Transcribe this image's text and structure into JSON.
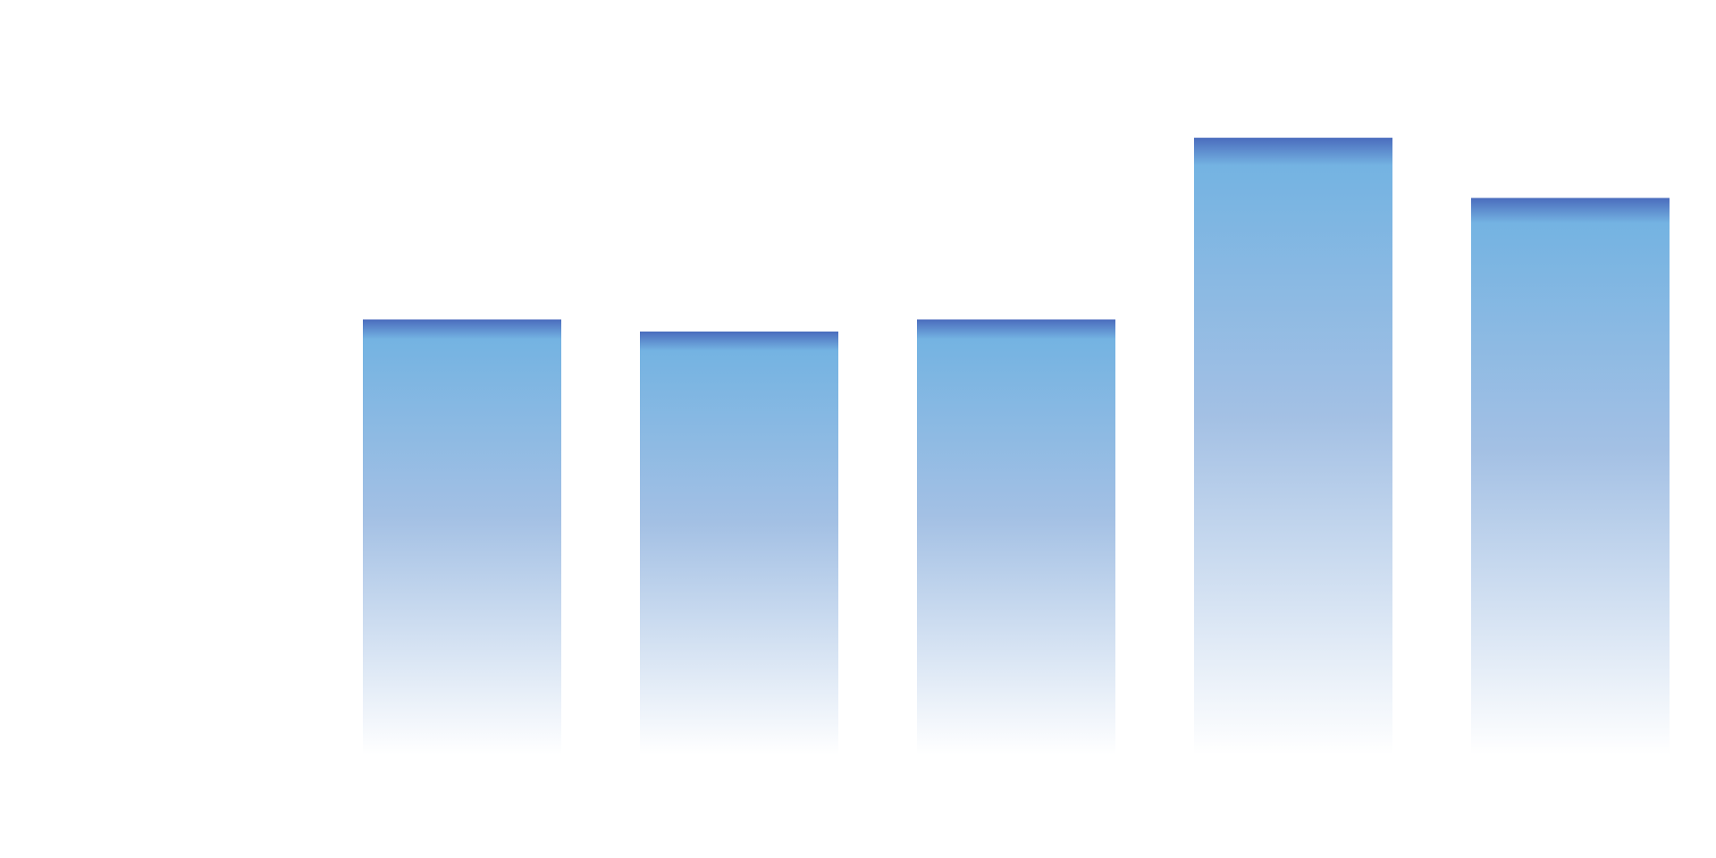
{
  "chart_data": {
    "type": "bar",
    "categories": [
      null,
      null,
      null,
      null,
      null
    ],
    "values": [
      398,
      387,
      398,
      564,
      509
    ],
    "color": "#74b3e2",
    "ylim": [
      0,
      600
    ]
  }
}
